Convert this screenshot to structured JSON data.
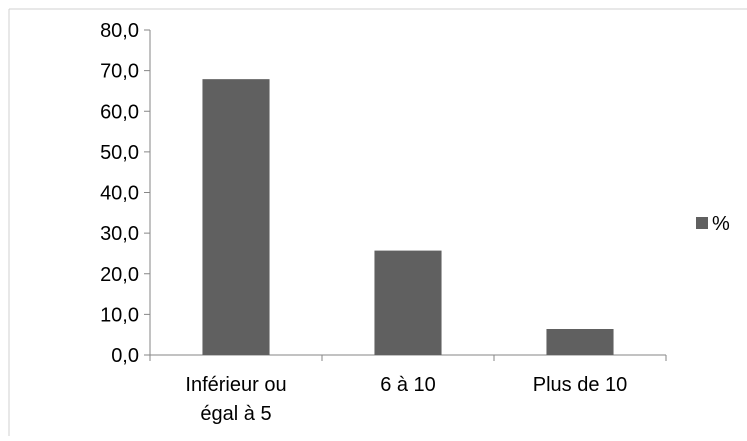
{
  "chart_data": {
    "type": "bar",
    "title": "",
    "xlabel": "",
    "ylabel": "",
    "categories": [
      "Inférieur ou égal  à 5",
      "6 à 10",
      "Plus de 10"
    ],
    "category_label_lines": [
      [
        "Inférieur ou",
        "égal  à 5"
      ],
      [
        "6 à 10"
      ],
      [
        "Plus de 10"
      ]
    ],
    "series": [
      {
        "name": "%",
        "values": [
          67.9,
          25.7,
          6.4
        ],
        "color": "#606060"
      }
    ],
    "ylim": [
      0,
      80
    ],
    "yticks": [
      0,
      10,
      20,
      30,
      40,
      50,
      60,
      70,
      80
    ],
    "ytick_labels": [
      "0,0",
      "10,0",
      "20,0",
      "30,0",
      "40,0",
      "50,0",
      "60,0",
      "70,0",
      "80,0"
    ],
    "grid": false,
    "legend": {
      "position": "right",
      "entries": [
        "%"
      ]
    }
  }
}
